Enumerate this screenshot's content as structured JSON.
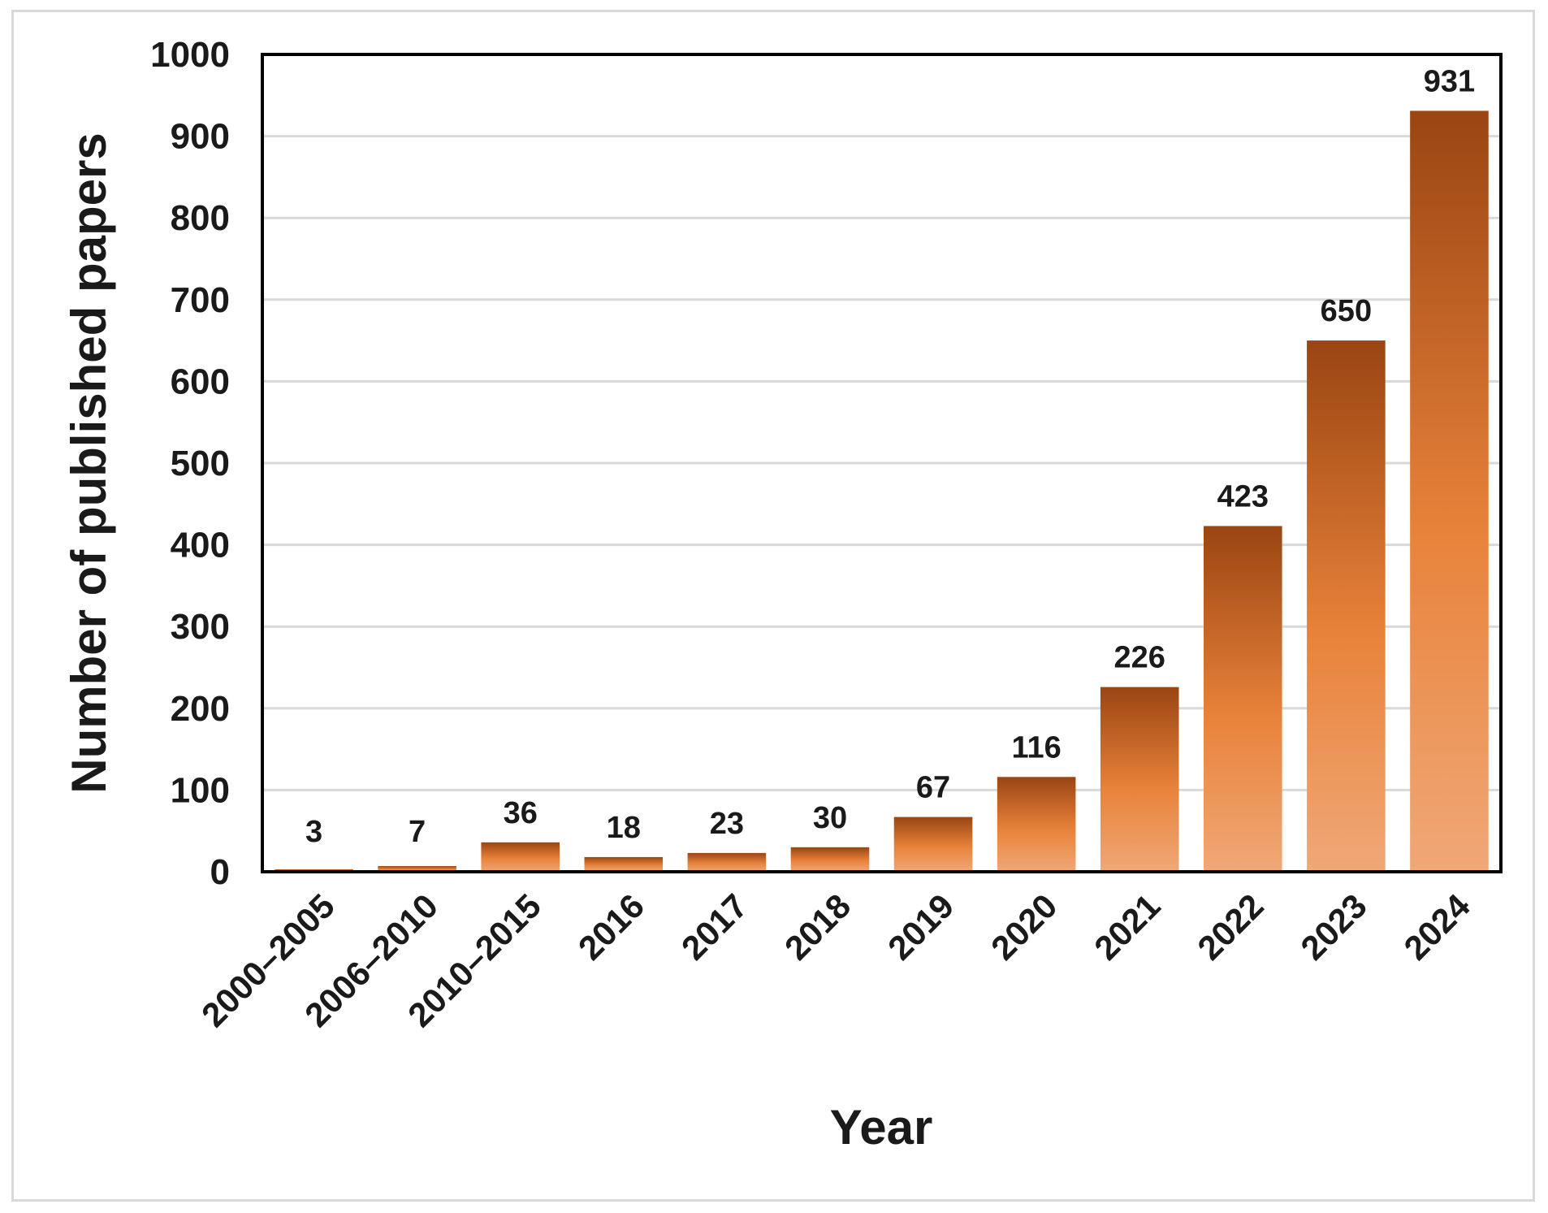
{
  "chart_data": {
    "type": "bar",
    "categories": [
      "2000–2005",
      "2006–2010",
      "2010–2015",
      "2016",
      "2017",
      "2018",
      "2019",
      "2020",
      "2021",
      "2022",
      "2023",
      "2024"
    ],
    "values": [
      3,
      7,
      36,
      18,
      23,
      30,
      67,
      116,
      226,
      423,
      650,
      931
    ],
    "xlabel": "Year",
    "ylabel": "Number of published papers",
    "ylim": [
      0,
      1000
    ],
    "yticks": [
      0,
      100,
      200,
      300,
      400,
      500,
      600,
      700,
      800,
      900,
      1000
    ],
    "grid": true,
    "legend": "none",
    "colors": {
      "bar_top": "#9a4512",
      "bar_mid": "#e8823a",
      "bar_bottom": "#f0a877",
      "gridline": "#d9d9d9",
      "axis": "#000000"
    }
  }
}
